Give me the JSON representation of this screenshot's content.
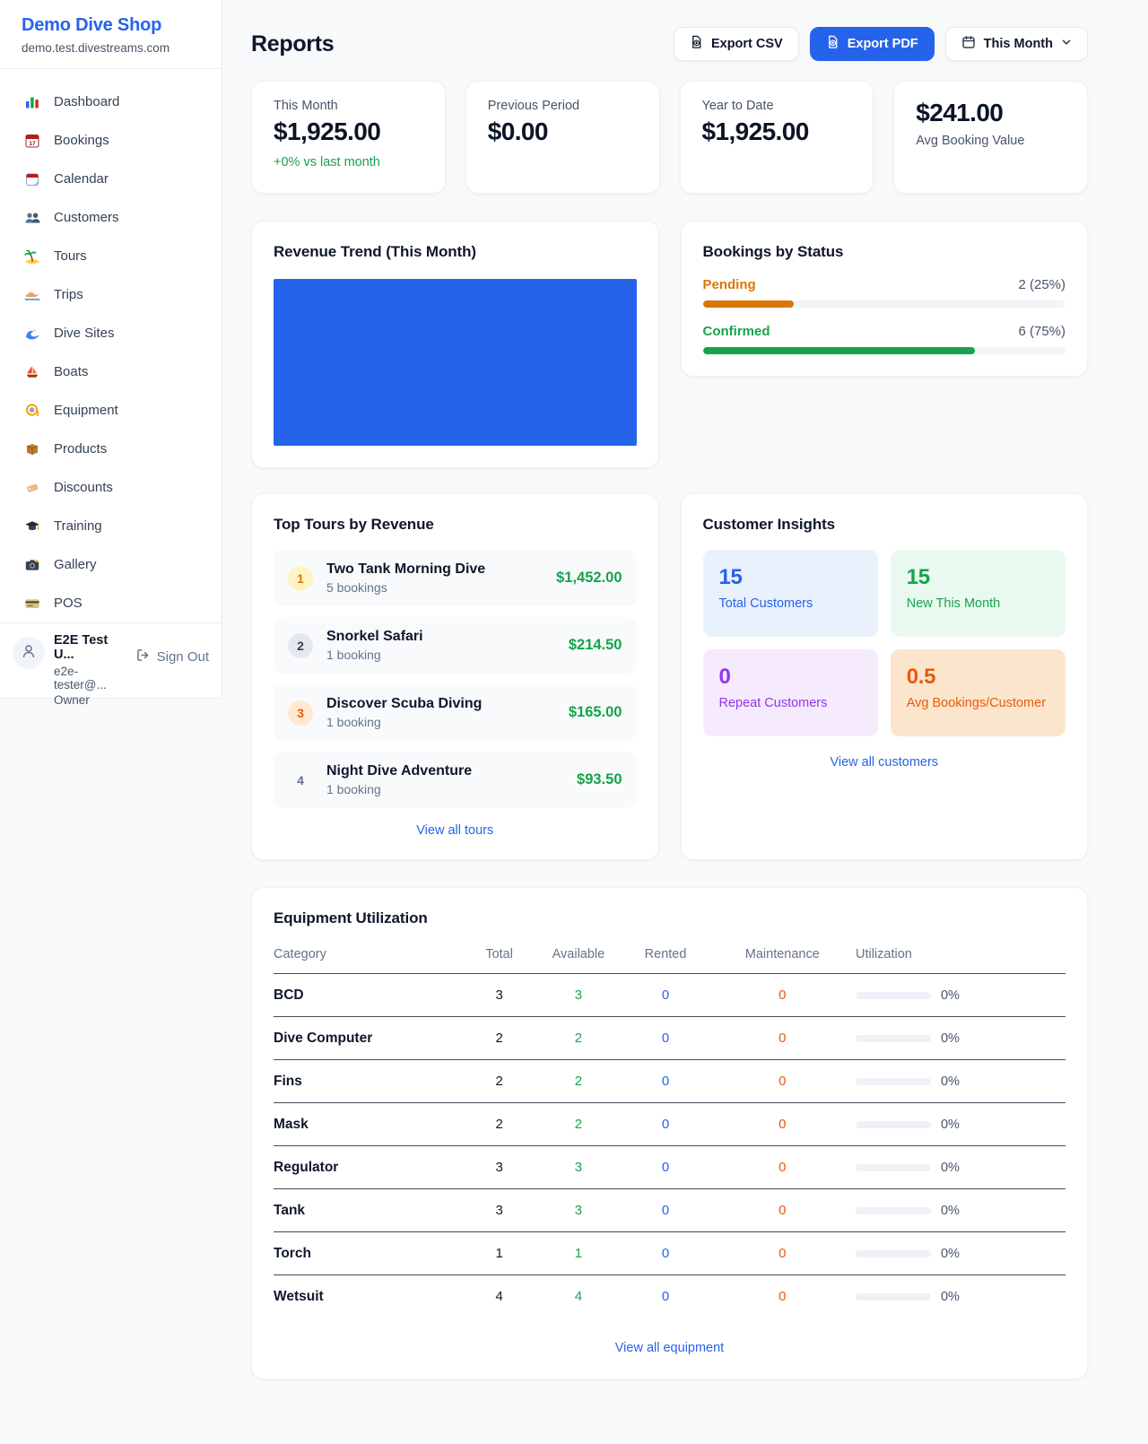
{
  "colors": {
    "accent": "#2563eb",
    "green": "#16a34a",
    "pending_orange": "#d97706",
    "orange": "#ea580c",
    "purple": "#9333ea"
  },
  "sidebar": {
    "shop_name": "Demo Dive Shop",
    "shop_domain": "demo.test.divestreams.com",
    "items": [
      {
        "name": "dashboard",
        "label": "Dashboard"
      },
      {
        "name": "bookings",
        "label": "Bookings"
      },
      {
        "name": "calendar",
        "label": "Calendar"
      },
      {
        "name": "customers",
        "label": "Customers"
      },
      {
        "name": "tours",
        "label": "Tours"
      },
      {
        "name": "trips",
        "label": "Trips"
      },
      {
        "name": "dive-sites",
        "label": "Dive Sites"
      },
      {
        "name": "boats",
        "label": "Boats"
      },
      {
        "name": "equipment",
        "label": "Equipment"
      },
      {
        "name": "products",
        "label": "Products"
      },
      {
        "name": "discounts",
        "label": "Discounts"
      },
      {
        "name": "training",
        "label": "Training"
      },
      {
        "name": "gallery",
        "label": "Gallery"
      },
      {
        "name": "pos",
        "label": "POS"
      }
    ],
    "user": {
      "name": "E2E Test U...",
      "email": "e2e-tester@...",
      "role": "Owner",
      "sign_out_label": "Sign Out"
    }
  },
  "header": {
    "title": "Reports",
    "export_csv_label": "Export CSV",
    "export_pdf_label": "Export PDF",
    "period_label": "This Month"
  },
  "stats": [
    {
      "label": "This Month",
      "value": "$1,925.00",
      "delta": "+0% vs last month",
      "label_position": "above"
    },
    {
      "label": "Previous Period",
      "value": "$0.00",
      "delta": "",
      "label_position": "above"
    },
    {
      "label": "Year to Date",
      "value": "$1,925.00",
      "delta": "",
      "label_position": "above"
    },
    {
      "label": "Avg Booking Value",
      "value": "$241.00",
      "delta": "",
      "label_position": "below"
    }
  ],
  "revenue_trend": {
    "title": "Revenue Trend (This Month)",
    "filled_percent": 100,
    "bar_color": "#2563eb"
  },
  "bookings_by_status": {
    "title": "Bookings by Status",
    "rows": [
      {
        "label": "Pending",
        "count": "2 (25%)",
        "pct": 25,
        "color": "#d97706"
      },
      {
        "label": "Confirmed",
        "count": "6 (75%)",
        "pct": 75,
        "color": "#16a34a"
      }
    ]
  },
  "top_tours": {
    "title": "Top Tours by Revenue",
    "rows": [
      {
        "rank": "1",
        "name": "Two Tank Morning Dive",
        "bookings": "5 bookings",
        "revenue": "$1,452.00"
      },
      {
        "rank": "2",
        "name": "Snorkel Safari",
        "bookings": "1 booking",
        "revenue": "$214.50"
      },
      {
        "rank": "3",
        "name": "Discover Scuba Diving",
        "bookings": "1 booking",
        "revenue": "$165.00"
      },
      {
        "rank": "4",
        "name": "Night Dive Adventure",
        "bookings": "1 booking",
        "revenue": "$93.50"
      }
    ],
    "link_label": "View all tours"
  },
  "customer_insights": {
    "title": "Customer Insights",
    "tiles": [
      {
        "value": "15",
        "label": "Total Customers",
        "theme": "blue"
      },
      {
        "value": "15",
        "label": "New This Month",
        "theme": "green"
      },
      {
        "value": "0",
        "label": "Repeat Customers",
        "theme": "purple"
      },
      {
        "value": "0.5",
        "label": "Avg Bookings/Customer",
        "theme": "orange"
      }
    ],
    "link_label": "View all customers"
  },
  "equipment": {
    "title": "Equipment Utilization",
    "columns": [
      "Category",
      "Total",
      "Available",
      "Rented",
      "Maintenance",
      "Utilization"
    ],
    "rows": [
      {
        "category": "BCD",
        "total": "3",
        "available": "3",
        "rented": "0",
        "maintenance": "0",
        "utilization": "0%"
      },
      {
        "category": "Dive Computer",
        "total": "2",
        "available": "2",
        "rented": "0",
        "maintenance": "0",
        "utilization": "0%"
      },
      {
        "category": "Fins",
        "total": "2",
        "available": "2",
        "rented": "0",
        "maintenance": "0",
        "utilization": "0%"
      },
      {
        "category": "Mask",
        "total": "2",
        "available": "2",
        "rented": "0",
        "maintenance": "0",
        "utilization": "0%"
      },
      {
        "category": "Regulator",
        "total": "3",
        "available": "3",
        "rented": "0",
        "maintenance": "0",
        "utilization": "0%"
      },
      {
        "category": "Tank",
        "total": "3",
        "available": "3",
        "rented": "0",
        "maintenance": "0",
        "utilization": "0%"
      },
      {
        "category": "Torch",
        "total": "1",
        "available": "1",
        "rented": "0",
        "maintenance": "0",
        "utilization": "0%"
      },
      {
        "category": "Wetsuit",
        "total": "4",
        "available": "4",
        "rented": "0",
        "maintenance": "0",
        "utilization": "0%"
      }
    ],
    "link_label": "View all equipment"
  }
}
